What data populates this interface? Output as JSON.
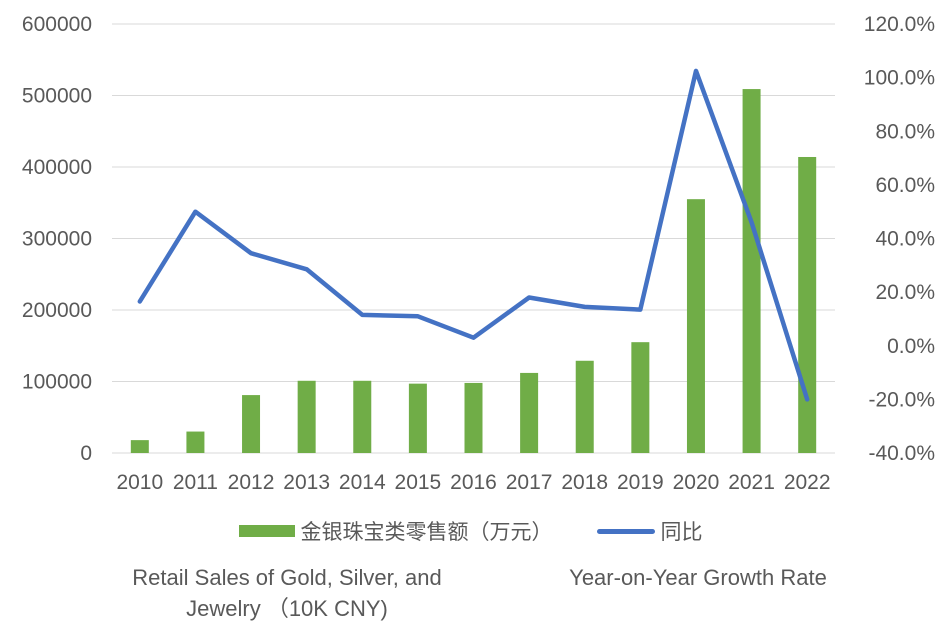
{
  "chart_data": {
    "type": "bar",
    "title": "",
    "categories": [
      "2010",
      "2011",
      "2012",
      "2013",
      "2014",
      "2015",
      "2016",
      "2017",
      "2018",
      "2019",
      "2020",
      "2021",
      "2022"
    ],
    "series": [
      {
        "name": "金银珠宝类零售额（万元）",
        "type": "bar",
        "axis": "left",
        "color": "#70ad47",
        "values": [
          18000,
          30000,
          81000,
          101000,
          101000,
          97000,
          98000,
          112000,
          129000,
          155000,
          355000,
          509000,
          414000
        ]
      },
      {
        "name": "同比",
        "type": "line",
        "axis": "right",
        "color": "#4472c4",
        "values": [
          16.5,
          50.0,
          34.5,
          28.5,
          11.5,
          11.0,
          3.0,
          18.0,
          14.5,
          13.5,
          102.5,
          46.0,
          -20.0
        ]
      }
    ],
    "y_left": {
      "ylim": [
        0,
        600000
      ],
      "ticks": [
        "0",
        "100000",
        "200000",
        "300000",
        "400000",
        "500000",
        "600000"
      ]
    },
    "y_right": {
      "ylim": [
        -40,
        120
      ],
      "ticks": [
        "-40.0%",
        "-20.0%",
        "0.0%",
        "20.0%",
        "40.0%",
        "60.0%",
        "80.0%",
        "100.0%",
        "120.0%"
      ]
    },
    "grid": true,
    "legend_position": "bottom"
  },
  "legend": {
    "bar_label": "金银珠宝类零售额（万元）",
    "line_label": "同比"
  },
  "captions": {
    "left_line1": "Retail Sales of Gold, Silver, and",
    "left_line2": "Jewelry （10K CNY)",
    "right": "Year-on-Year Growth Rate"
  }
}
